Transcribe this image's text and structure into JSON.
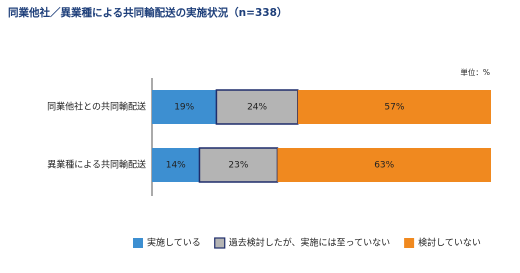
{
  "chart_data": {
    "type": "stacked-bar-horizontal",
    "title": "同業他社／異業種による共同輸配送の実施状況（n=338）",
    "unit_label": "単位：%",
    "categories": [
      "同業他社との共同輸配送",
      "異業種による共同輸配送"
    ],
    "series": [
      {
        "name": "実施している",
        "color": "#3d8fd1",
        "values": [
          19,
          14
        ],
        "value_labels": [
          "19%",
          "14%"
        ]
      },
      {
        "name": "過去検討したが、実施には至っていない",
        "color": "#b4b4b4",
        "border": "#1f2d6b",
        "values": [
          24,
          23
        ],
        "value_labels": [
          "24%",
          "23%"
        ]
      },
      {
        "name": "検討していない",
        "color": "#f0891f",
        "values": [
          57,
          63
        ],
        "value_labels": [
          "57%",
          "63%"
        ]
      }
    ]
  }
}
